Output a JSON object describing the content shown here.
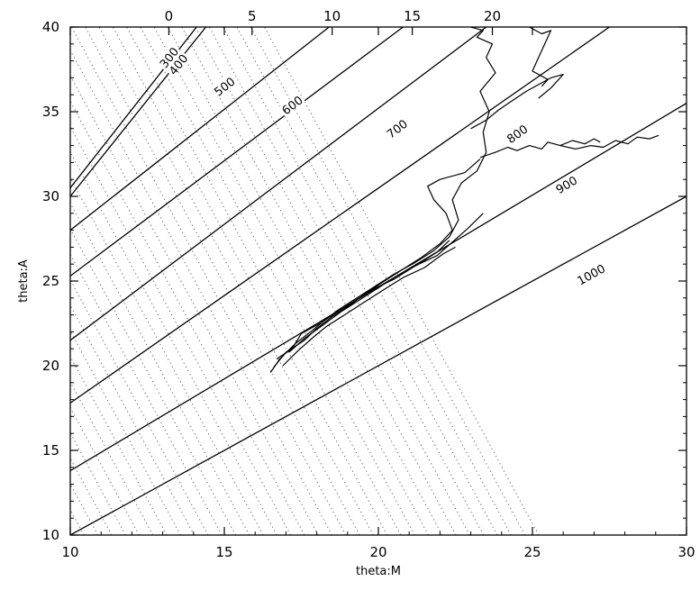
{
  "chart_data": {
    "type": "line",
    "title": "",
    "xlabel": "theta:M",
    "ylabel": "theta:A",
    "xlim": [
      10,
      30
    ],
    "ylim": [
      10,
      40
    ],
    "x_ticks": [
      10,
      15,
      20,
      25,
      30
    ],
    "y_ticks": [
      10,
      15,
      20,
      25,
      30,
      35,
      40
    ],
    "top_ticks": [
      {
        "value": 0,
        "x": 13.2
      },
      {
        "value": 5,
        "x": 15.9
      },
      {
        "value": 10,
        "x": 18.5
      },
      {
        "value": 15,
        "x": 21.1
      },
      {
        "value": 20,
        "x": 23.7
      }
    ],
    "grid": false,
    "contour_lines": [
      {
        "label": "300",
        "x": [
          10,
          14.1
        ],
        "y": [
          30.5,
          40
        ],
        "label_at": [
          13.2,
          38.2
        ]
      },
      {
        "label": "400",
        "x": [
          10,
          14.4
        ],
        "y": [
          30.0,
          40
        ],
        "label_at": [
          13.5,
          37.8
        ]
      },
      {
        "label": "500",
        "x": [
          10,
          18.4
        ],
        "y": [
          28.0,
          40
        ],
        "label_at": [
          15.0,
          36.5
        ]
      },
      {
        "label": "600",
        "x": [
          10,
          20.8
        ],
        "y": [
          25.3,
          40
        ],
        "label_at": [
          17.2,
          35.4
        ]
      },
      {
        "label": "700",
        "x": [
          10,
          23.5
        ],
        "y": [
          21.5,
          40
        ],
        "label_at": [
          20.6,
          34.0
        ]
      },
      {
        "label": "800",
        "x": [
          10,
          27.5
        ],
        "y": [
          17.8,
          40
        ],
        "label_at": [
          24.5,
          33.7
        ]
      },
      {
        "label": "900",
        "x": [
          10,
          30
        ],
        "y": [
          13.8,
          35.5
        ],
        "label_at": [
          26.1,
          30.7
        ]
      },
      {
        "label": "1000",
        "x": [
          10,
          30
        ],
        "y": [
          10.0,
          30.0
        ],
        "label_at": [
          26.9,
          25.4
        ]
      }
    ],
    "dotted_lines": {
      "y_bottom": 10,
      "y_top": 40,
      "x_at_bottom_start": 10.0,
      "x_at_bottom_end": 25.2,
      "x_offset_top": 8.9,
      "count": 35
    },
    "series": [
      {
        "x": [
          16.5,
          16.8,
          17.3,
          17.8,
          18.2,
          18.7,
          19.3,
          19.9,
          20.5,
          21.2,
          21.8,
          22.3,
          22.6,
          22.4,
          22.7,
          23.2,
          23.5,
          23.4,
          23.6,
          23.3,
          23.8,
          23.5,
          23.7,
          23.2,
          23.4,
          23.0
        ],
        "y": [
          19.6,
          20.4,
          21.3,
          22.0,
          22.6,
          23.3,
          24.0,
          24.7,
          25.4,
          26.1,
          26.8,
          27.6,
          28.6,
          29.8,
          30.8,
          31.5,
          32.6,
          33.8,
          35.0,
          36.2,
          37.3,
          38.2,
          39.0,
          39.4,
          39.8,
          40.0
        ]
      },
      {
        "x": [
          16.6,
          17.0,
          17.6,
          18.0,
          18.5,
          19.1,
          19.6,
          20.2,
          20.8,
          21.4,
          22.0,
          22.4,
          22.2,
          21.8,
          21.6,
          22.0,
          22.8,
          23.3
        ],
        "y": [
          19.9,
          20.8,
          21.5,
          22.2,
          22.9,
          23.6,
          24.3,
          25.0,
          25.7,
          26.4,
          27.2,
          28.0,
          29.0,
          29.8,
          30.6,
          31.0,
          31.4,
          32.2
        ]
      },
      {
        "x": [
          16.7,
          17.2,
          17.5,
          18.1,
          18.6,
          19.2,
          19.8,
          20.5,
          21.2,
          21.9,
          22.4,
          22.9,
          23.4
        ],
        "y": [
          20.4,
          21.0,
          21.9,
          22.5,
          23.1,
          23.8,
          24.5,
          25.1,
          25.9,
          26.5,
          27.3,
          28.1,
          29.0
        ]
      },
      {
        "x": [
          16.9,
          17.4,
          17.9,
          18.3,
          18.9,
          19.5,
          20.1,
          20.8,
          21.5,
          22.1,
          22.5
        ],
        "y": [
          20.0,
          20.9,
          21.7,
          22.3,
          23.0,
          23.7,
          24.4,
          25.2,
          25.8,
          26.6,
          27.0
        ]
      },
      {
        "x": [
          17.1,
          17.6,
          18.2,
          18.8,
          19.4,
          20.0,
          20.6,
          21.3,
          21.9,
          22.3
        ],
        "y": [
          20.8,
          21.6,
          22.4,
          23.2,
          23.9,
          24.6,
          25.3,
          26.0,
          26.7,
          27.4
        ]
      },
      {
        "x": [
          23.3,
          23.8,
          24.2,
          24.5,
          24.9,
          25.3,
          25.5,
          25.9,
          26.3,
          26.7,
          27.0,
          27.2
        ],
        "y": [
          32.3,
          32.6,
          32.9,
          32.7,
          33.0,
          32.8,
          33.2,
          33.0,
          33.3,
          33.1,
          33.4,
          33.2
        ]
      },
      {
        "x": [
          25.9,
          26.4,
          26.9,
          27.3,
          27.7,
          28.1,
          28.4,
          28.8,
          29.1
        ],
        "y": [
          33.0,
          32.8,
          33.0,
          32.9,
          33.3,
          33.1,
          33.5,
          33.4,
          33.6
        ]
      },
      {
        "x": [
          23.0,
          23.5,
          23.9,
          24.3,
          24.8,
          25.2,
          25.6,
          26.0,
          25.6,
          25.2
        ],
        "y": [
          34.0,
          34.5,
          35.1,
          35.6,
          36.2,
          36.6,
          37.0,
          37.2,
          36.4,
          35.8
        ]
      },
      {
        "x": [
          24.9,
          25.3,
          25.6,
          25.4,
          25.2,
          25.0,
          25.5,
          25.3
        ],
        "y": [
          40.0,
          39.6,
          39.8,
          39.0,
          38.2,
          37.4,
          36.9,
          36.5
        ]
      }
    ]
  }
}
